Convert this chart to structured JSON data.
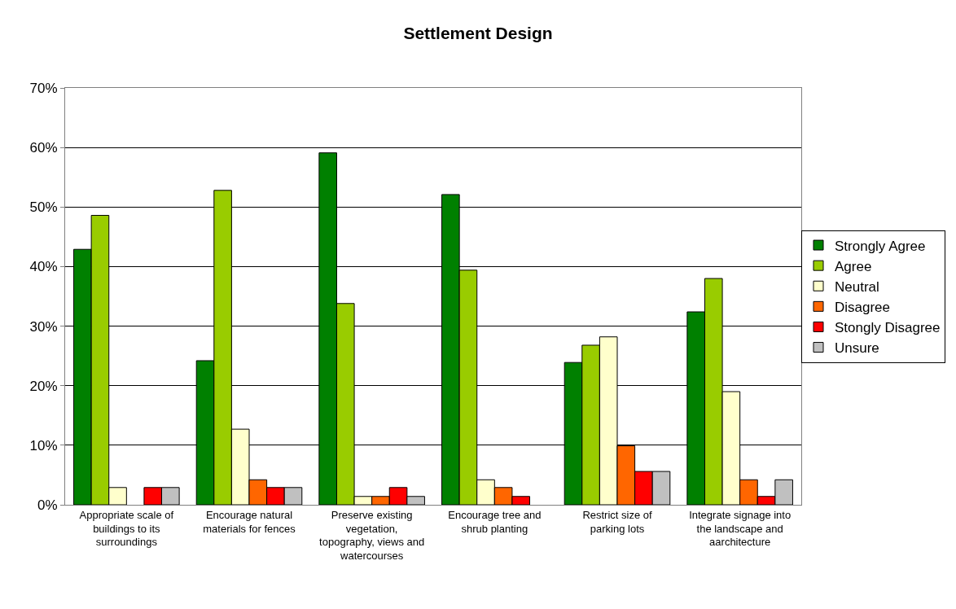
{
  "chart_data": {
    "type": "bar",
    "title": "Settlement Design",
    "categories": [
      "Appropriate scale of buildings to its surroundings",
      "Encourage natural materials for fences",
      "Preserve existing vegetation, topography, views and watercourses",
      "Encourage tree and shrub planting",
      "Restrict size of parking lots",
      "Integrate signage into the landscape and aarchitecture"
    ],
    "series": [
      {
        "name": "Strongly Agree",
        "color": "#008000",
        "values": [
          42.9,
          24.2,
          59.1,
          52.1,
          23.9,
          32.4
        ]
      },
      {
        "name": "Agree",
        "color": "#99cc00",
        "values": [
          48.6,
          52.8,
          33.8,
          39.4,
          26.8,
          38.0
        ]
      },
      {
        "name": "Neutral",
        "color": "#ffffcc",
        "values": [
          2.9,
          12.7,
          1.4,
          4.2,
          28.2,
          19.0
        ]
      },
      {
        "name": "Disagree",
        "color": "#ff6600",
        "values": [
          null,
          4.2,
          1.4,
          2.9,
          9.9,
          4.2
        ]
      },
      {
        "name": "Stongly Disagree",
        "color": "#ff0000",
        "values": [
          2.9,
          2.9,
          2.9,
          1.4,
          5.6,
          1.4
        ]
      },
      {
        "name": "Unsure",
        "color": "#c0c0c0",
        "values": [
          2.9,
          2.9,
          1.4,
          null,
          5.6,
          4.2
        ]
      }
    ],
    "ylim": [
      0,
      70
    ],
    "yticks": [
      {
        "value": 0,
        "label": "0%"
      },
      {
        "value": 10,
        "label": "10%"
      },
      {
        "value": 20,
        "label": "20%"
      },
      {
        "value": 30,
        "label": "30%"
      },
      {
        "value": 40,
        "label": "40%"
      },
      {
        "value": 50,
        "label": "50%"
      },
      {
        "value": 60,
        "label": "60%"
      },
      {
        "value": 70,
        "label": "70%"
      }
    ],
    "grid": "y",
    "legend": "right"
  }
}
